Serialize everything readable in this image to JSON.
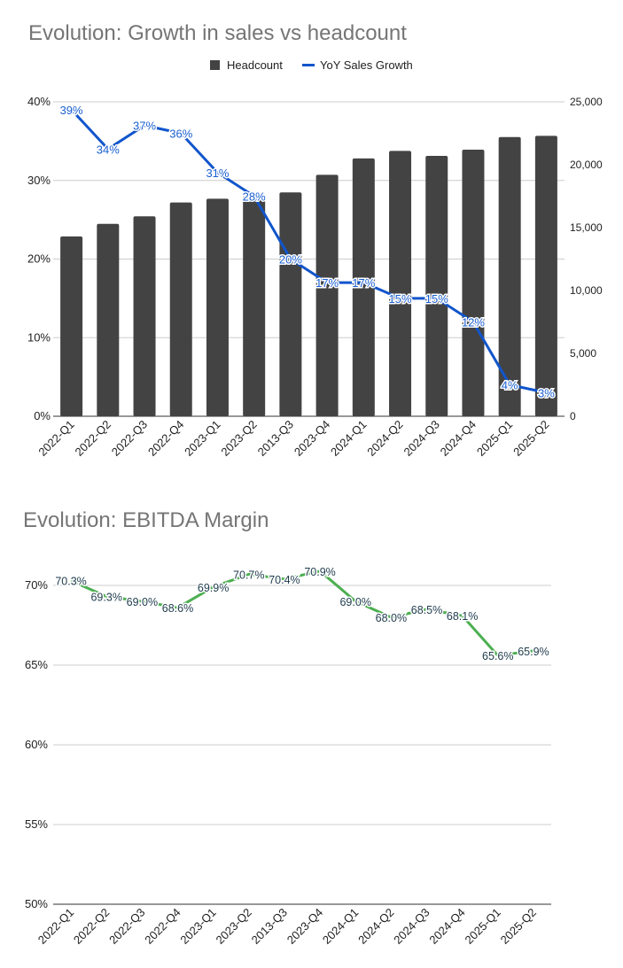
{
  "chart_data": [
    {
      "type": "bar+line",
      "title": "Evolution: Growth in sales vs headcount",
      "categories": [
        "2022-Q1",
        "2022-Q2",
        "2022-Q3",
        "2022-Q4",
        "2023-Q1",
        "2023-Q2",
        "2013-Q3",
        "2023-Q4",
        "2024-Q1",
        "2024-Q2",
        "2024-Q3",
        "2024-Q4",
        "2025-Q1",
        "2025-Q2"
      ],
      "series": [
        {
          "name": "Headcount",
          "type": "bar",
          "axis": "right",
          "color": "#434343",
          "values": [
            14300,
            15300,
            15900,
            17000,
            17300,
            17500,
            17800,
            19200,
            20500,
            21100,
            20700,
            21200,
            22200,
            22300
          ]
        },
        {
          "name": "YoY Sales Growth",
          "type": "line",
          "axis": "left",
          "color": "#1155cc",
          "values": [
            39,
            34,
            37,
            36,
            31,
            28,
            20,
            17,
            17,
            15,
            15,
            12,
            4,
            3
          ],
          "labels": [
            "39%",
            "34%",
            "37%",
            "36%",
            "31%",
            "28%",
            "20%",
            "17%",
            "17%",
            "15%",
            "15%",
            "12%",
            "4%",
            "3%"
          ]
        }
      ],
      "left_axis": {
        "min": 0,
        "max": 40,
        "ticks": [
          "0%",
          "10%",
          "20%",
          "30%",
          "40%"
        ]
      },
      "right_axis": {
        "min": 0,
        "max": 25000,
        "ticks": [
          "0",
          "5,000",
          "10,000",
          "15,000",
          "20,000",
          "25,000"
        ]
      },
      "legend": {
        "position": "top-center",
        "items": [
          "Headcount",
          "YoY Sales Growth"
        ]
      },
      "grid": true
    },
    {
      "type": "line",
      "title": "Evolution: EBITDA Margin",
      "categories": [
        "2022-Q1",
        "2022-Q2",
        "2022-Q3",
        "2022-Q4",
        "2023-Q1",
        "2023-Q2",
        "2013-Q3",
        "2023-Q4",
        "2024-Q1",
        "2024-Q2",
        "2024-Q3",
        "2024-Q4",
        "2025-Q1",
        "2025-Q2"
      ],
      "series": [
        {
          "name": "EBITDA Margin",
          "color": "#4caf50",
          "values": [
            70.3,
            69.3,
            69.0,
            68.6,
            69.9,
            70.7,
            70.4,
            70.9,
            69.0,
            68.0,
            68.5,
            68.1,
            65.6,
            65.9
          ],
          "labels": [
            "70.3%",
            "69.3%",
            "69.0%",
            "68.6%",
            "69.9%",
            "70.7%",
            "70.4%",
            "70.9%",
            "69.0%",
            "68.0%",
            "68.5%",
            "68.1%",
            "65.6%",
            "65.9%"
          ]
        }
      ],
      "y_axis": {
        "min": 50,
        "max": 72.5,
        "ticks": [
          "50%",
          "55%",
          "60%",
          "65%",
          "70%"
        ]
      },
      "grid": true
    }
  ]
}
